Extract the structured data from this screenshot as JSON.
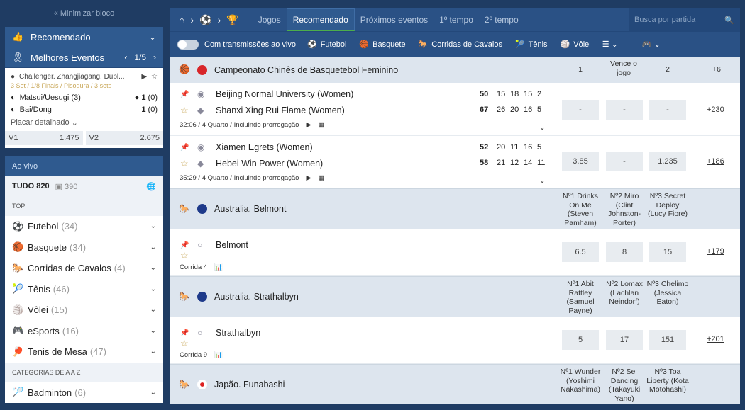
{
  "sidebar": {
    "minimize": "« Minimizar bloco",
    "recommended": "Recomendado",
    "best_events": "Melhores Eventos",
    "pager": "1/5",
    "card": {
      "league": "Challenger. Zhangjiagang. Dupl...",
      "stage": "3 Set / 1/8 Finals / Pisodura / 3 sets",
      "teams": [
        {
          "name": "Matsui/Uesugi (3)",
          "score": "1",
          "sets": "(0)"
        },
        {
          "name": "Bai/Dong",
          "score": "1",
          "sets": "(0)"
        }
      ],
      "detail": "Placar detalhado",
      "odds": [
        {
          "label": "V1",
          "value": "1.475"
        },
        {
          "label": "V2",
          "value": "2.675"
        }
      ]
    },
    "live": "Ao vivo",
    "all": "TUDO 820",
    "streams": "390",
    "top": "TOP",
    "sports": [
      {
        "name": "Futebol",
        "count": "(34)",
        "icon": "⚽"
      },
      {
        "name": "Basquete",
        "count": "(34)",
        "icon": "🏀"
      },
      {
        "name": "Corridas de Cavalos",
        "count": "(4)",
        "icon": "🐎"
      },
      {
        "name": "Tênis",
        "count": "(46)",
        "icon": "🎾"
      },
      {
        "name": "Vôlei",
        "count": "(15)",
        "icon": "🏐"
      },
      {
        "name": "eSports",
        "count": "(16)",
        "icon": "🎮"
      },
      {
        "name": "Tenis de Mesa",
        "count": "(47)",
        "icon": "🏓"
      }
    ],
    "az": "CATEGORIAS DE A A Z",
    "az_sports": [
      {
        "name": "Badminton",
        "count": "(6)",
        "icon": "🏸"
      }
    ]
  },
  "nav": {
    "tabs": [
      "Jogos",
      "Recomendado",
      "Próximos eventos",
      "1º tempo",
      "2º tempo"
    ],
    "active": 1,
    "search_placeholder": "Busca por partida"
  },
  "filters": {
    "live_toggle": "Com transmissões ao vivo",
    "sports": [
      "Futebol",
      "Basquete",
      "Corridas de Cavalos",
      "Tênis",
      "Vôlei"
    ]
  },
  "basket": {
    "league": "Campeonato Chinês de Basquetebol Feminino",
    "h1": "1",
    "hx": "Vence o jogo",
    "h2": "2",
    "hmore": "+6",
    "matches": [
      {
        "t1": "Beijing Normal University (Women)",
        "t2": "Shanxi Xing Rui Flame (Women)",
        "s1": [
          "50",
          "15",
          "18",
          "15",
          "2"
        ],
        "s2": [
          "67",
          "26",
          "20",
          "16",
          "5"
        ],
        "meta": "32:06 / 4 Quarto / Incluindo prorrogação",
        "odds": [
          "-",
          "-",
          "-"
        ],
        "more": "+230"
      },
      {
        "t1": "Xiamen Egrets (Women)",
        "t2": "Hebei Win Power (Women)",
        "s1": [
          "52",
          "20",
          "11",
          "16",
          "5"
        ],
        "s2": [
          "58",
          "21",
          "12",
          "14",
          "11"
        ],
        "meta": "35:29 / 4 Quarto / Incluindo prorrogação",
        "odds": [
          "3.85",
          "-",
          "1.235"
        ],
        "more": "+186"
      }
    ]
  },
  "races": [
    {
      "league": "Australia. Belmont",
      "heads": [
        "Nº1 Drinks On Me (Steven Pamham)",
        "Nº2 Miro (Clint Johnston-Porter)",
        "Nº3 Secret Deploy (Lucy Fiore)"
      ],
      "event": "Belmont",
      "meta": "Corrida 4",
      "odds": [
        "6.5",
        "8",
        "15"
      ],
      "more": "+179"
    },
    {
      "league": "Australia. Strathalbyn",
      "heads": [
        "Nº1 Abit Rattley (Samuel Payne)",
        "Nº2 Lomax (Lachlan Neindorf)",
        "Nº3 Chelimo (Jessica Eaton)"
      ],
      "event": "Strathalbyn",
      "meta": "Corrida 9",
      "odds": [
        "5",
        "17",
        "151"
      ],
      "more": "+201"
    },
    {
      "league": "Japão. Funabashi",
      "heads": [
        "Nº1 Wunder (Yoshimi Nakashima)",
        "Nº2 Sei Dancing (Takayuki Yano)",
        "Nº3 Toa Liberty (Kota Motohashi)"
      ]
    }
  ]
}
